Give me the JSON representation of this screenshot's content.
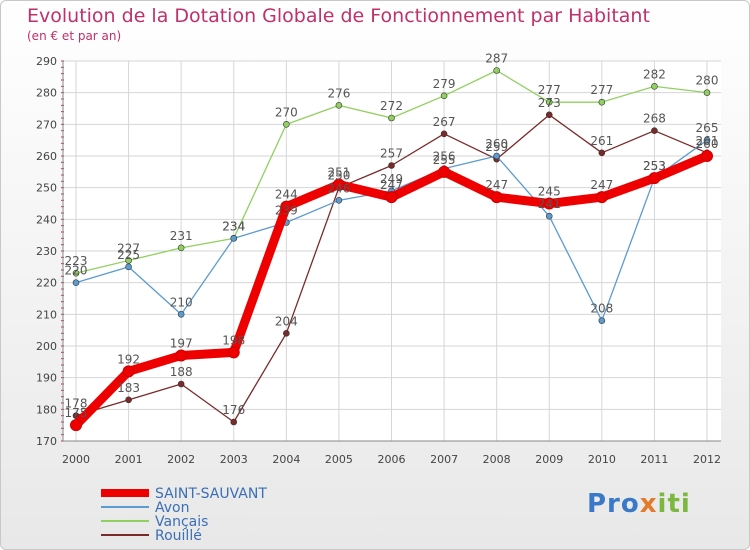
{
  "chart_data": {
    "type": "line",
    "title": "Evolution de la Dotation Globale de Fonctionnement par Habitant",
    "subtitle": "(en € et par an)",
    "xlabel": "",
    "ylabel": "",
    "x": [
      "2000",
      "2001",
      "2002",
      "2003",
      "2004",
      "2005",
      "2006",
      "2007",
      "2008",
      "2009",
      "2010",
      "2011",
      "2012"
    ],
    "ylim": [
      170,
      290
    ],
    "yticks": [
      170,
      180,
      190,
      200,
      210,
      220,
      230,
      240,
      250,
      260,
      270,
      280,
      290
    ],
    "grid": true,
    "legend_position": "bottom-left",
    "series": [
      {
        "name": "Vançais",
        "color": "#90d060",
        "values": [
          223,
          227,
          231,
          234,
          270,
          276,
          272,
          279,
          287,
          277,
          277,
          282,
          280
        ]
      },
      {
        "name": "Rouillé",
        "color": "#7a2a2a",
        "values": [
          178,
          183,
          188,
          176,
          204,
          250,
          257,
          267,
          259,
          273,
          261,
          268,
          261
        ]
      },
      {
        "name": "Avon",
        "color": "#5b9bd0",
        "values": [
          220,
          225,
          210,
          234,
          239,
          246,
          249,
          256,
          260,
          241,
          208,
          253,
          265
        ]
      },
      {
        "name": "SAINT-SAUVANT",
        "color": "#ee0000",
        "values": [
          175,
          192,
          197,
          198,
          244,
          251,
          247,
          255,
          247,
          245,
          247,
          253,
          260
        ]
      }
    ],
    "legend": [
      "SAINT-SAUVANT",
      "Avon",
      "Vançais",
      "Rouillé"
    ]
  },
  "logo": {
    "part1": "Pro",
    "part2": "x",
    "part3": "iti"
  }
}
